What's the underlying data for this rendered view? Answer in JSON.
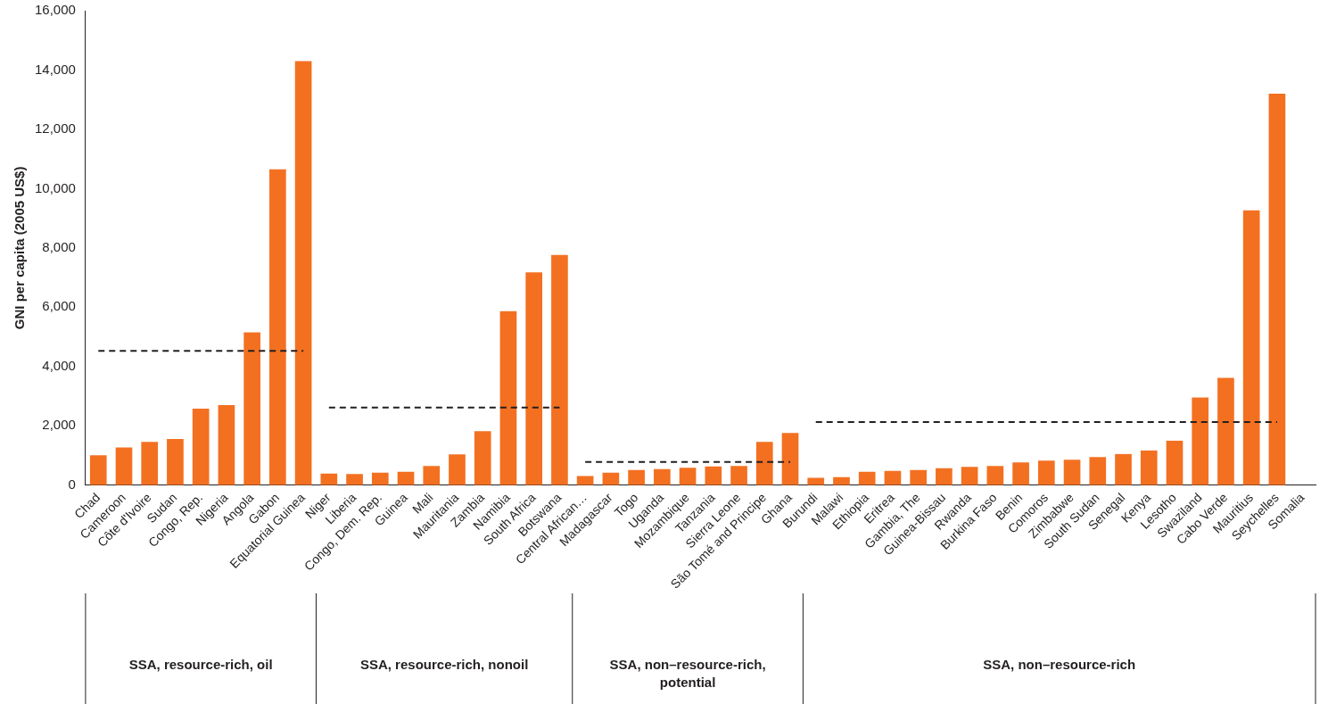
{
  "chart_data": {
    "type": "bar",
    "ylabel": "GNI per capita (2005 US$)",
    "categories": [
      "Chad",
      "Cameroon",
      "Côte d'Ivoire",
      "Sudan",
      "Congo, Rep.",
      "Nigeria",
      "Angola",
      "Gabon",
      "Equatorial Guinea",
      "Niger",
      "Liberia",
      "Congo, Dem. Rep.",
      "Guinea",
      "Mali",
      "Mauritania",
      "Zambia",
      "Namibia",
      "South Africa",
      "Botswana",
      "Central African…",
      "Madagascar",
      "Togo",
      "Uganda",
      "Mozambique",
      "Tanzania",
      "Sierra Leone",
      "São Tomé and Principe",
      "Ghana",
      "Burundi",
      "Malawi",
      "Ethiopia",
      "Eritrea",
      "Gambia, The",
      "Guinea-Bissau",
      "Rwanda",
      "Burkina Faso",
      "Benin",
      "Comoros",
      "Zimbabwe",
      "South Sudan",
      "Senegal",
      "Kenya",
      "Lesotho",
      "Swaziland",
      "Cabo Verde",
      "Mauritius",
      "Seychelles",
      "Somalia"
    ],
    "series": [
      {
        "color": "#f37021",
        "values": [
          1010,
          1270,
          1460,
          1560,
          2580,
          2700,
          5150,
          10650,
          14300,
          390,
          380,
          420,
          450,
          650,
          1040,
          1820,
          5870,
          7180,
          7760,
          310,
          420,
          510,
          540,
          590,
          630,
          650,
          1460,
          1760,
          250,
          270,
          450,
          480,
          510,
          570,
          620,
          650,
          770,
          830,
          860,
          950,
          1050,
          1170,
          1500,
          2960,
          3620,
          9270,
          13200,
          null
        ]
      },
      {
        "type": "line",
        "color": "#231f20",
        "line_style": "dashed",
        "values": [
          4530,
          4530,
          4530,
          4530,
          4530,
          4530,
          4530,
          4530,
          4530,
          null,
          null,
          null,
          null,
          null,
          null,
          null,
          null,
          null,
          null,
          null,
          null,
          null,
          null,
          null,
          null,
          null,
          null,
          null,
          null,
          null,
          null,
          null,
          null,
          null,
          null,
          null,
          null,
          null,
          null,
          null,
          null,
          null,
          null,
          null,
          null,
          null,
          null,
          null
        ]
      },
      {
        "type": "line",
        "color": "#231f20",
        "line_style": "dashed",
        "values": [
          null,
          null,
          null,
          null,
          null,
          null,
          null,
          null,
          null,
          2620,
          2620,
          2620,
          2620,
          2620,
          2620,
          2620,
          2620,
          2620,
          2620,
          null,
          null,
          null,
          null,
          null,
          null,
          null,
          null,
          null,
          null,
          null,
          null,
          null,
          null,
          null,
          null,
          null,
          null,
          null,
          null,
          null,
          null,
          null,
          null,
          null,
          null,
          null,
          null,
          null
        ]
      },
      {
        "type": "line",
        "color": "#231f20",
        "line_style": "dashed",
        "values": [
          null,
          null,
          null,
          null,
          null,
          null,
          null,
          null,
          null,
          null,
          null,
          null,
          null,
          null,
          null,
          null,
          null,
          null,
          null,
          780,
          780,
          780,
          780,
          780,
          780,
          780,
          780,
          780,
          null,
          null,
          null,
          null,
          null,
          null,
          null,
          null,
          null,
          null,
          null,
          null,
          null,
          null,
          null,
          null,
          null,
          null,
          null,
          null
        ]
      },
      {
        "type": "line",
        "color": "#231f20",
        "line_style": "dashed",
        "values": [
          null,
          null,
          null,
          null,
          null,
          null,
          null,
          null,
          null,
          null,
          null,
          null,
          null,
          null,
          null,
          null,
          null,
          null,
          null,
          null,
          null,
          null,
          null,
          null,
          null,
          null,
          null,
          null,
          2130,
          2130,
          2130,
          2130,
          2130,
          2130,
          2130,
          2130,
          2130,
          2130,
          2130,
          2130,
          2130,
          2130,
          2130,
          2130,
          2130,
          2130,
          2130,
          null
        ]
      }
    ],
    "ylim": [
      0,
      16000
    ],
    "yticks": [
      {
        "value": 0,
        "label": "0"
      },
      {
        "value": 2000,
        "label": "2,000"
      },
      {
        "value": 4000,
        "label": "4,000"
      },
      {
        "value": 6000,
        "label": "6,000"
      },
      {
        "value": 8000,
        "label": "8,000"
      },
      {
        "value": 10000,
        "label": "10,000"
      },
      {
        "value": 12000,
        "label": "12,000"
      },
      {
        "value": 14000,
        "label": "14,000"
      },
      {
        "value": 16000,
        "label": "16,000"
      }
    ],
    "annotations": [
      "SSA, resource-rich, oil",
      "SSA, resource-rich, nonoil",
      "SSA, non–resource-rich, potential",
      "SSA, non–resource-rich"
    ],
    "grid": false,
    "legend": false
  }
}
